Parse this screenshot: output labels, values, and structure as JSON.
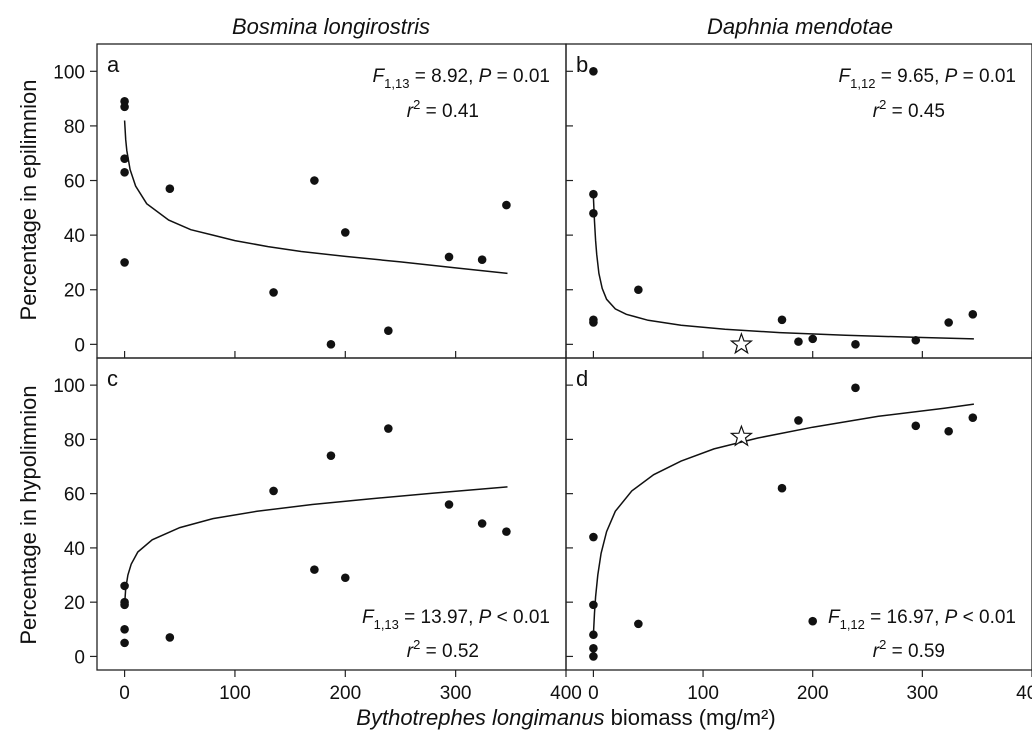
{
  "column_titles": [
    "Bosmina longirostris",
    "Daphnia mendotae"
  ],
  "ylabel_top": "Percentage in epilimnion",
  "ylabel_bottom": "Percentage in hypolimnion",
  "xlabel_species": "Bythotrephes longimanus",
  "xlabel_rest": " biomass (mg/m²)",
  "chart_data": [
    {
      "panel": "a",
      "type": "scatter",
      "species": "Bosmina longirostris",
      "response": "Percentage in epilimnion",
      "xlim": [
        -25,
        400
      ],
      "ylim": [
        -5,
        110
      ],
      "xticks": [
        0,
        100,
        200,
        300,
        400
      ],
      "yticks": [
        0,
        20,
        40,
        60,
        80,
        100
      ],
      "points": [
        [
          0,
          89
        ],
        [
          0,
          87
        ],
        [
          0,
          68
        ],
        [
          0,
          63
        ],
        [
          0,
          30
        ],
        [
          41,
          57
        ],
        [
          135,
          19
        ],
        [
          172,
          60
        ],
        [
          187,
          0
        ],
        [
          200,
          41
        ],
        [
          239,
          5
        ],
        [
          294,
          32
        ],
        [
          324,
          31
        ],
        [
          346,
          51
        ]
      ],
      "stats": {
        "F_sub": "1,13",
        "F_value": "8.92",
        "P_op": "=",
        "P_value": "0.01",
        "r2_value": "0.41"
      },
      "fit_curve": [
        [
          0,
          82
        ],
        [
          1,
          75
        ],
        [
          2,
          71
        ],
        [
          5,
          64
        ],
        [
          10,
          58
        ],
        [
          20,
          51.5
        ],
        [
          40,
          45.5
        ],
        [
          60,
          42
        ],
        [
          80,
          40
        ],
        [
          100,
          38
        ],
        [
          130,
          35.8
        ],
        [
          160,
          34
        ],
        [
          200,
          32.2
        ],
        [
          250,
          30.2
        ],
        [
          300,
          28
        ],
        [
          347,
          26
        ]
      ]
    },
    {
      "panel": "b",
      "type": "scatter",
      "species": "Daphnia mendotae",
      "response": "Percentage in epilimnion",
      "xlim": [
        -25,
        400
      ],
      "ylim": [
        -5,
        110
      ],
      "xticks": [
        0,
        100,
        200,
        300,
        400
      ],
      "yticks": [
        0,
        20,
        40,
        60,
        80,
        100
      ],
      "points": [
        [
          0,
          100
        ],
        [
          0,
          55
        ],
        [
          0,
          48
        ],
        [
          0,
          9
        ],
        [
          0,
          8
        ],
        [
          41,
          20
        ],
        [
          172,
          9
        ],
        [
          187,
          1
        ],
        [
          200,
          2
        ],
        [
          239,
          0
        ],
        [
          294,
          1.5
        ],
        [
          324,
          8
        ],
        [
          346,
          11
        ]
      ],
      "starred_points": [
        [
          135,
          0
        ]
      ],
      "stats": {
        "F_sub": "1,12",
        "F_value": "9.65",
        "P_op": "=",
        "P_value": "0.01",
        "r2_value": "0.45"
      },
      "fit_curve": [
        [
          0,
          54
        ],
        [
          1,
          45
        ],
        [
          2,
          38
        ],
        [
          3,
          33
        ],
        [
          5,
          26
        ],
        [
          8,
          20.5
        ],
        [
          12,
          16.5
        ],
        [
          20,
          13
        ],
        [
          30,
          11
        ],
        [
          50,
          8.8
        ],
        [
          80,
          7
        ],
        [
          120,
          5.5
        ],
        [
          170,
          4.3
        ],
        [
          230,
          3.3
        ],
        [
          300,
          2.5
        ],
        [
          347,
          2
        ]
      ]
    },
    {
      "panel": "c",
      "type": "scatter",
      "species": "Bosmina longirostris",
      "response": "Percentage in hypolimnion",
      "xlim": [
        -25,
        400
      ],
      "ylim": [
        -5,
        110
      ],
      "xticks": [
        0,
        100,
        200,
        300,
        400
      ],
      "yticks": [
        0,
        20,
        40,
        60,
        80,
        100
      ],
      "points": [
        [
          0,
          26
        ],
        [
          0,
          20
        ],
        [
          0,
          19
        ],
        [
          0,
          10
        ],
        [
          0,
          5
        ],
        [
          41,
          7
        ],
        [
          135,
          61
        ],
        [
          172,
          32
        ],
        [
          187,
          74
        ],
        [
          200,
          29
        ],
        [
          239,
          84
        ],
        [
          294,
          56
        ],
        [
          324,
          49
        ],
        [
          346,
          46
        ]
      ],
      "stats": {
        "F_sub": "1,13",
        "F_value": "13.97",
        "P_op": "<",
        "P_value": "0.01",
        "r2_value": "0.52"
      },
      "fit_curve": [
        [
          0,
          19
        ],
        [
          1,
          25
        ],
        [
          3,
          30
        ],
        [
          6,
          34
        ],
        [
          12,
          38.5
        ],
        [
          25,
          43
        ],
        [
          50,
          47.5
        ],
        [
          80,
          50.8
        ],
        [
          120,
          53.5
        ],
        [
          170,
          56
        ],
        [
          220,
          58
        ],
        [
          280,
          60.2
        ],
        [
          347,
          62.5
        ]
      ]
    },
    {
      "panel": "d",
      "type": "scatter",
      "species": "Daphnia mendotae",
      "response": "Percentage in hypolimnion",
      "xlim": [
        -25,
        400
      ],
      "ylim": [
        -5,
        110
      ],
      "xticks": [
        0,
        100,
        200,
        300,
        400
      ],
      "yticks": [
        0,
        20,
        40,
        60,
        80,
        100
      ],
      "points": [
        [
          0,
          44
        ],
        [
          0,
          19
        ],
        [
          0,
          8
        ],
        [
          0,
          3
        ],
        [
          0,
          0
        ],
        [
          41,
          12
        ],
        [
          172,
          62
        ],
        [
          187,
          87
        ],
        [
          200,
          13
        ],
        [
          239,
          99
        ],
        [
          294,
          85
        ],
        [
          324,
          83
        ],
        [
          346,
          88
        ]
      ],
      "starred_points": [
        [
          135,
          81
        ]
      ],
      "stats": {
        "F_sub": "1,12",
        "F_value": "16.97",
        "P_op": "<",
        "P_value": "0.01",
        "r2_value": "0.59"
      },
      "fit_curve": [
        [
          0,
          8
        ],
        [
          1,
          16
        ],
        [
          2,
          22
        ],
        [
          4,
          30
        ],
        [
          7,
          38
        ],
        [
          12,
          46
        ],
        [
          20,
          53.5
        ],
        [
          35,
          61
        ],
        [
          55,
          67
        ],
        [
          80,
          72
        ],
        [
          110,
          76.5
        ],
        [
          150,
          80.5
        ],
        [
          200,
          84.5
        ],
        [
          260,
          88.5
        ],
        [
          320,
          91.5
        ],
        [
          347,
          93
        ]
      ]
    }
  ]
}
